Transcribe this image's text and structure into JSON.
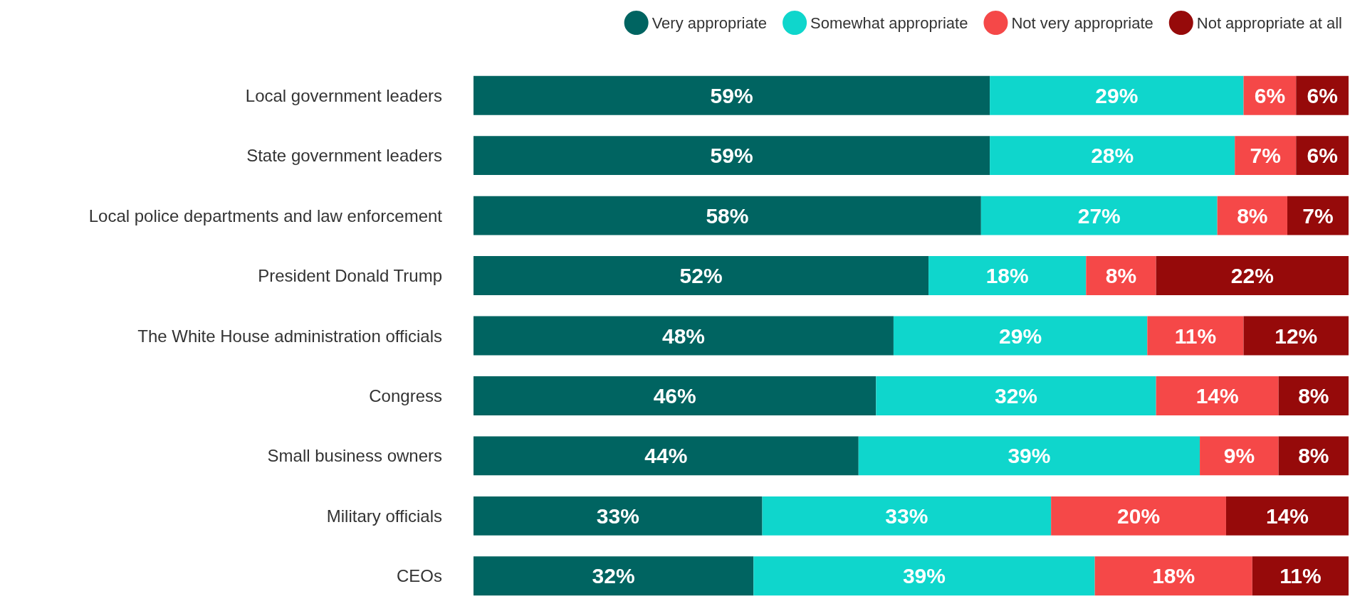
{
  "chart_data": {
    "type": "bar",
    "orientation": "horizontal",
    "stacked": true,
    "legend": "top right",
    "categories": [
      "Local government leaders",
      "State government leaders",
      "Local police departments and law enforcement",
      "President Donald Trump",
      "The White House administration officials",
      "Congress",
      "Small business owners",
      "Military officials",
      "CEOs"
    ],
    "series": [
      {
        "name": "Very appropriate",
        "color": "#006461",
        "values": [
          59,
          59,
          58,
          52,
          48,
          46,
          44,
          33,
          32
        ],
        "value_labels": [
          "59%",
          "59%",
          "58%",
          "52%",
          "48%",
          "46%",
          "44%",
          "33%",
          "32%"
        ]
      },
      {
        "name": "Somewhat appropriate",
        "color": "#0fd6cc",
        "values": [
          29,
          28,
          27,
          18,
          29,
          32,
          39,
          33,
          39
        ],
        "value_labels": [
          "29%",
          "28%",
          "27%",
          "18%",
          "29%",
          "32%",
          "39%",
          "33%",
          "39%"
        ]
      },
      {
        "name": "Not very appropriate",
        "color": "#f54848",
        "values": [
          6,
          7,
          8,
          8,
          11,
          14,
          9,
          20,
          18
        ],
        "value_labels": [
          "6%",
          "7%",
          "8%",
          "8%",
          "11%",
          "14%",
          "9%",
          "20%",
          "18%"
        ]
      },
      {
        "name": "Not appropriate at all",
        "color": "#960a0a",
        "values": [
          6,
          6,
          7,
          22,
          12,
          8,
          8,
          14,
          11
        ],
        "value_labels": [
          "6%",
          "6%",
          "7%",
          "22%",
          "12%",
          "8%",
          "8%",
          "14%",
          "11%"
        ]
      }
    ]
  }
}
